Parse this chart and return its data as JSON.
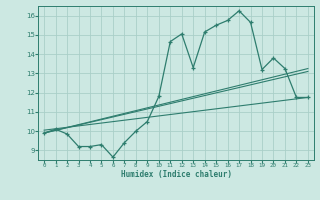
{
  "xlabel": "Humidex (Indice chaleur)",
  "bg_color": "#cce8e2",
  "line_color": "#2e7d6e",
  "grid_color": "#aacfc8",
  "xlim": [
    -0.5,
    23.5
  ],
  "ylim": [
    8.5,
    16.5
  ],
  "yticks": [
    9,
    10,
    11,
    12,
    13,
    14,
    15,
    16
  ],
  "xticks": [
    0,
    1,
    2,
    3,
    4,
    5,
    6,
    7,
    8,
    9,
    10,
    11,
    12,
    13,
    14,
    15,
    16,
    17,
    18,
    19,
    20,
    21,
    22,
    23
  ],
  "main_curve_x": [
    0,
    1,
    2,
    3,
    4,
    5,
    6,
    7,
    8,
    9,
    10,
    11,
    12,
    13,
    14,
    15,
    16,
    17,
    18,
    19,
    20,
    21,
    22,
    23
  ],
  "main_curve_y": [
    9.9,
    10.1,
    9.85,
    9.2,
    9.2,
    9.3,
    8.65,
    9.4,
    10.0,
    10.5,
    11.8,
    14.65,
    15.05,
    13.3,
    15.15,
    15.5,
    15.75,
    16.25,
    15.65,
    13.2,
    13.8,
    13.25,
    11.75,
    11.75
  ],
  "reg_line1_x": [
    0,
    23
  ],
  "reg_line1_y": [
    9.9,
    13.25
  ],
  "reg_line2_x": [
    0,
    23
  ],
  "reg_line2_y": [
    10.05,
    11.75
  ],
  "reg_line3_x": [
    0,
    23
  ],
  "reg_line3_y": [
    9.9,
    13.1
  ]
}
